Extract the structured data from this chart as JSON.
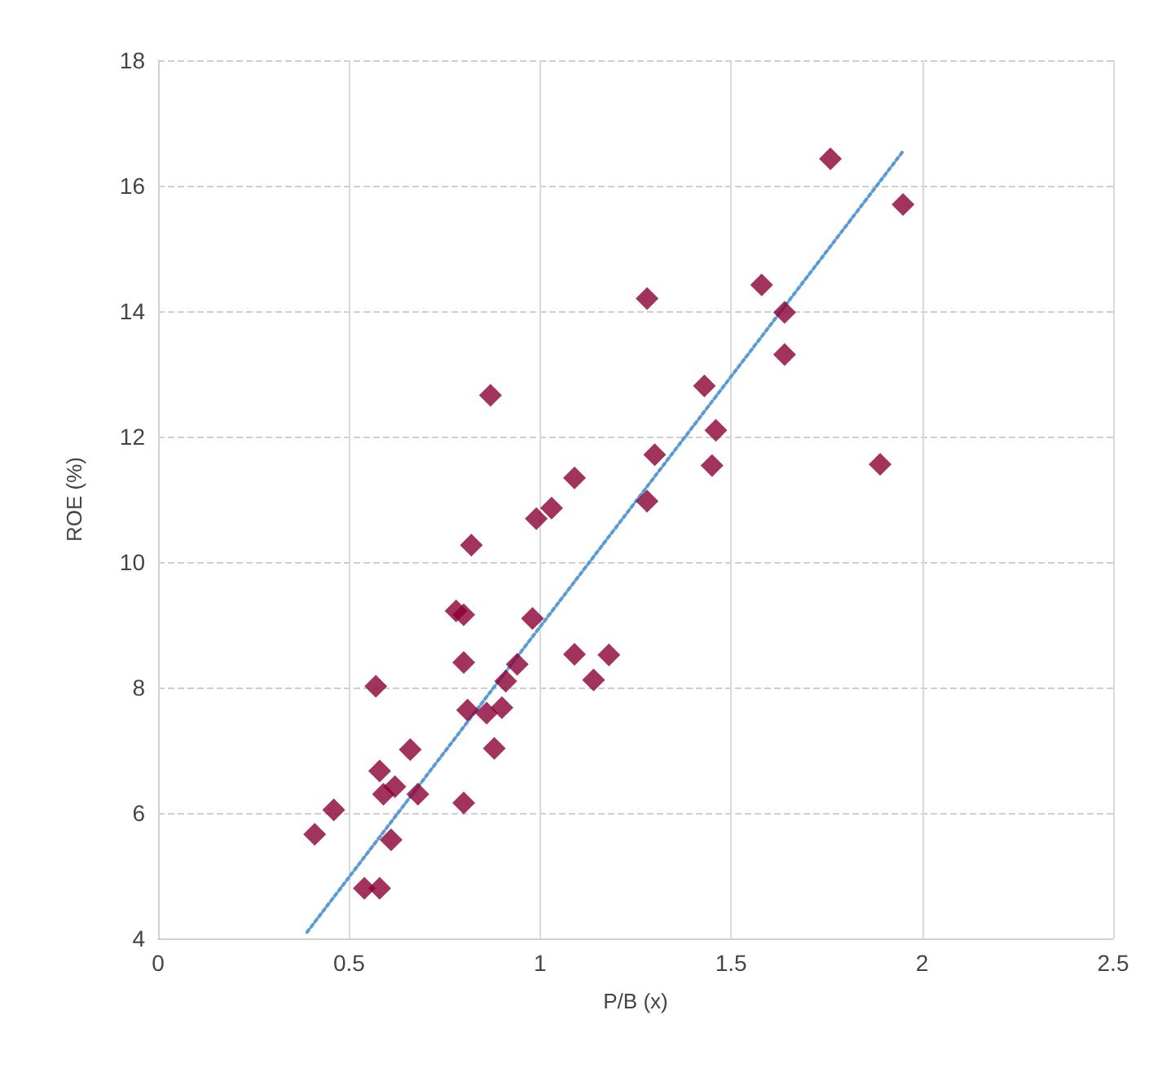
{
  "chart_data": {
    "type": "scatter",
    "xlabel": "P/B (x)",
    "ylabel": "ROE (%)",
    "xlim": [
      0,
      2.5
    ],
    "xticks": [
      0,
      0.5,
      1,
      1.5,
      2,
      2.5
    ],
    "ylim": [
      4,
      18
    ],
    "yticks": [
      4,
      6,
      8,
      10,
      12,
      14,
      16,
      18
    ],
    "grid": true,
    "marker": "diamond",
    "series": [
      {
        "color": "#8b0033",
        "x": [
          0.41,
          0.46,
          0.54,
          0.58,
          0.57,
          0.58,
          0.59,
          0.61,
          0.62,
          0.66,
          0.68,
          0.8,
          0.8,
          0.78,
          0.8,
          0.81,
          0.86,
          0.9,
          0.88,
          0.91,
          0.94,
          0.98,
          0.82,
          0.87,
          0.99,
          1.03,
          1.09,
          1.09,
          1.14,
          1.18,
          1.28,
          1.3,
          1.28,
          1.43,
          1.46,
          1.45,
          1.58,
          1.64,
          1.64,
          1.76,
          1.95,
          1.89
        ],
        "values": [
          5.66,
          6.05,
          4.8,
          4.8,
          8.02,
          6.67,
          6.3,
          5.57,
          6.42,
          7.01,
          6.3,
          6.16,
          8.4,
          9.22,
          9.16,
          7.64,
          7.59,
          7.68,
          7.03,
          8.1,
          8.37,
          9.1,
          10.27,
          12.66,
          10.69,
          10.86,
          11.34,
          8.53,
          8.12,
          8.52,
          10.97,
          11.71,
          14.2,
          12.81,
          12.1,
          11.54,
          14.42,
          13.98,
          13.31,
          16.43,
          15.7,
          11.56
        ]
      },
      {
        "type": "line",
        "color": "#5b9bd5",
        "line_style": "dotted",
        "marker": "none",
        "x": [
          0.39,
          1.95
        ],
        "values": [
          4.1,
          16.55
        ]
      }
    ]
  }
}
